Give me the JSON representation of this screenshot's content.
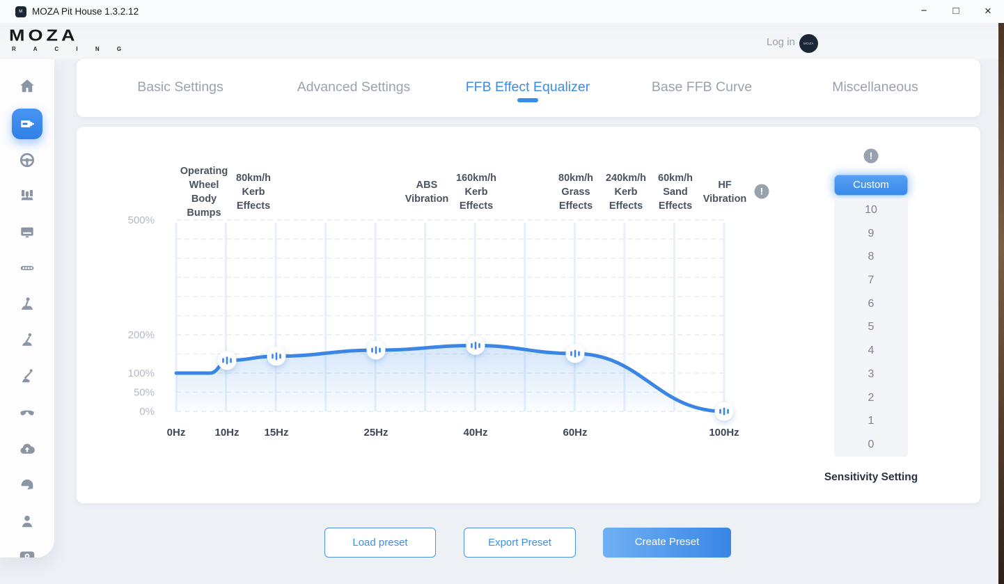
{
  "window": {
    "title": "MOZA Pit House 1.3.2.12",
    "app_icon": "moza-app-icon",
    "controls": {
      "minimize": "−",
      "maximize": "□",
      "close": "×"
    }
  },
  "header": {
    "logo_text": "MOZA",
    "logo_sub": "R A C I N G",
    "login_label": "Log in",
    "avatar_text": "MOZA"
  },
  "sidebar": {
    "items": [
      {
        "icon": "home-icon",
        "active": false
      },
      {
        "icon": "wheelbase-icon",
        "active": true
      },
      {
        "icon": "steering-wheel-icon",
        "active": false
      },
      {
        "icon": "pedals-icon",
        "active": false
      },
      {
        "icon": "monitor-icon",
        "active": false
      },
      {
        "icon": "dashboard-led-icon",
        "active": false
      },
      {
        "icon": "handbrake-icon",
        "active": false
      },
      {
        "icon": "shifter-icon",
        "active": false
      },
      {
        "icon": "sequential-lever-icon",
        "active": false
      },
      {
        "icon": "wheel-rim-icon",
        "active": false
      },
      {
        "icon": "cloud-upload-icon",
        "active": false
      },
      {
        "icon": "helmet-icon",
        "active": false
      },
      {
        "icon": "user-icon",
        "active": false
      },
      {
        "icon": "settings-icon",
        "active": false
      }
    ]
  },
  "tabs": {
    "items": [
      {
        "label": "Basic Settings",
        "active": false
      },
      {
        "label": "Advanced Settings",
        "active": false
      },
      {
        "label": "FFB Effect Equalizer",
        "active": true
      },
      {
        "label": "Base FFB Curve",
        "active": false
      },
      {
        "label": "Miscellaneous",
        "active": false
      }
    ]
  },
  "chart_data": {
    "type": "line",
    "x_unit": "Hz",
    "frequencies": [
      0,
      10,
      15,
      25,
      40,
      60,
      100
    ],
    "x_tick_labels": [
      "0Hz",
      "10Hz",
      "15Hz",
      "25Hz",
      "40Hz",
      "60Hz",
      "100Hz"
    ],
    "values_percent": [
      100,
      133,
      144,
      160,
      172,
      151,
      0
    ],
    "y_tick_labels": [
      "500%",
      "200%",
      "100%",
      "50%",
      "0%"
    ],
    "y_tick_values": [
      500,
      200,
      100,
      50,
      0
    ],
    "ylim": [
      0,
      500
    ],
    "grid": true,
    "band_labels": [
      "Operating\nWheel\nBody\nBumps",
      "80km/h\nKerb\nEffects",
      "ABS\nVibration",
      "160km/h\nKerb\nEffects",
      "80km/h\nGrass\nEffects",
      "240km/h\nKerb\nEffects",
      "60km/h\nSand\nEffects",
      "HF\nVibration"
    ],
    "info_icon": "info-icon",
    "curve_color": "#3b86e4"
  },
  "sensitivity": {
    "info_icon": "info-icon",
    "selected": "Custom",
    "options": [
      "Custom",
      "10",
      "9",
      "8",
      "7",
      "6",
      "5",
      "4",
      "3",
      "2",
      "1",
      "0"
    ],
    "label": "Sensitivity Setting"
  },
  "footer": {
    "buttons": [
      {
        "label": "Load preset",
        "style": "outline"
      },
      {
        "label": "Export Preset",
        "style": "outline"
      },
      {
        "label": "Create Preset",
        "style": "primary"
      }
    ]
  },
  "colors": {
    "accent": "#3a8ce8",
    "curve": "#3b86e4",
    "grid_vertical": "#e4f0fd",
    "grid_horizontal": "#ebebee",
    "sidebar_icon": "#8b95a4",
    "info_icon_bg": "#98a2ae"
  }
}
